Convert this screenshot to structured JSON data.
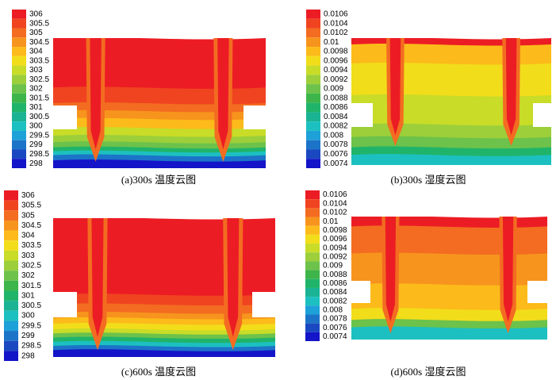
{
  "chart_data": [
    {
      "type": "contour",
      "title": "(a)300s 温度云图",
      "levels": [
        306,
        305.5,
        305,
        304.5,
        304,
        303.5,
        303,
        302.5,
        302,
        301.5,
        301,
        300.5,
        300,
        299.5,
        299,
        298.5,
        298
      ],
      "colors": [
        "#ec1c24",
        "#f04420",
        "#f36c21",
        "#f7941d",
        "#fcbb1a",
        "#f2dd1b",
        "#c8dc28",
        "#9ccf3a",
        "#6cc24a",
        "#3db54a",
        "#20b46a",
        "#1ab394",
        "#1dc0c0",
        "#1ea0d8",
        "#1c74c8",
        "#1a48c0",
        "#1414c8"
      ]
    },
    {
      "type": "contour",
      "title": "(b)300s 湿度云图",
      "levels": [
        0.0106,
        0.0104,
        0.0102,
        0.01,
        0.0098,
        0.0096,
        0.0094,
        0.0092,
        0.009,
        0.0088,
        0.0086,
        0.0084,
        0.0082,
        0.008,
        0.0078,
        0.0076,
        0.0074
      ],
      "colors": [
        "#ec1c24",
        "#f04420",
        "#f36c21",
        "#f7941d",
        "#fcbb1a",
        "#f2dd1b",
        "#c8dc28",
        "#9ccf3a",
        "#6cc24a",
        "#3db54a",
        "#20b46a",
        "#1ab394",
        "#1dc0c0",
        "#1ea0d8",
        "#1c74c8",
        "#1a48c0",
        "#1414c8"
      ]
    },
    {
      "type": "contour",
      "title": "(c)600s 温度云图",
      "levels": [
        306,
        305.5,
        305,
        304.5,
        304,
        303.5,
        303,
        302.5,
        302,
        301.5,
        301,
        300.5,
        300,
        299.5,
        299,
        298.5,
        298
      ],
      "colors": [
        "#ec1c24",
        "#f04420",
        "#f36c21",
        "#f7941d",
        "#fcbb1a",
        "#f2dd1b",
        "#c8dc28",
        "#9ccf3a",
        "#6cc24a",
        "#3db54a",
        "#20b46a",
        "#1ab394",
        "#1dc0c0",
        "#1ea0d8",
        "#1c74c8",
        "#1a48c0",
        "#1414c8"
      ]
    },
    {
      "type": "contour",
      "title": "(d)600s 湿度云图",
      "levels": [
        0.0106,
        0.0104,
        0.0102,
        0.01,
        0.0098,
        0.0096,
        0.0094,
        0.0092,
        0.009,
        0.0088,
        0.0086,
        0.0084,
        0.0082,
        0.008,
        0.0078,
        0.0076,
        0.0074
      ],
      "colors": [
        "#ec1c24",
        "#f04420",
        "#f36c21",
        "#f7941d",
        "#fcbb1a",
        "#f2dd1b",
        "#c8dc28",
        "#9ccf3a",
        "#6cc24a",
        "#3db54a",
        "#20b46a",
        "#1ab394",
        "#1dc0c0",
        "#1ea0d8",
        "#1c74c8",
        "#1a48c0",
        "#1414c8"
      ]
    }
  ]
}
